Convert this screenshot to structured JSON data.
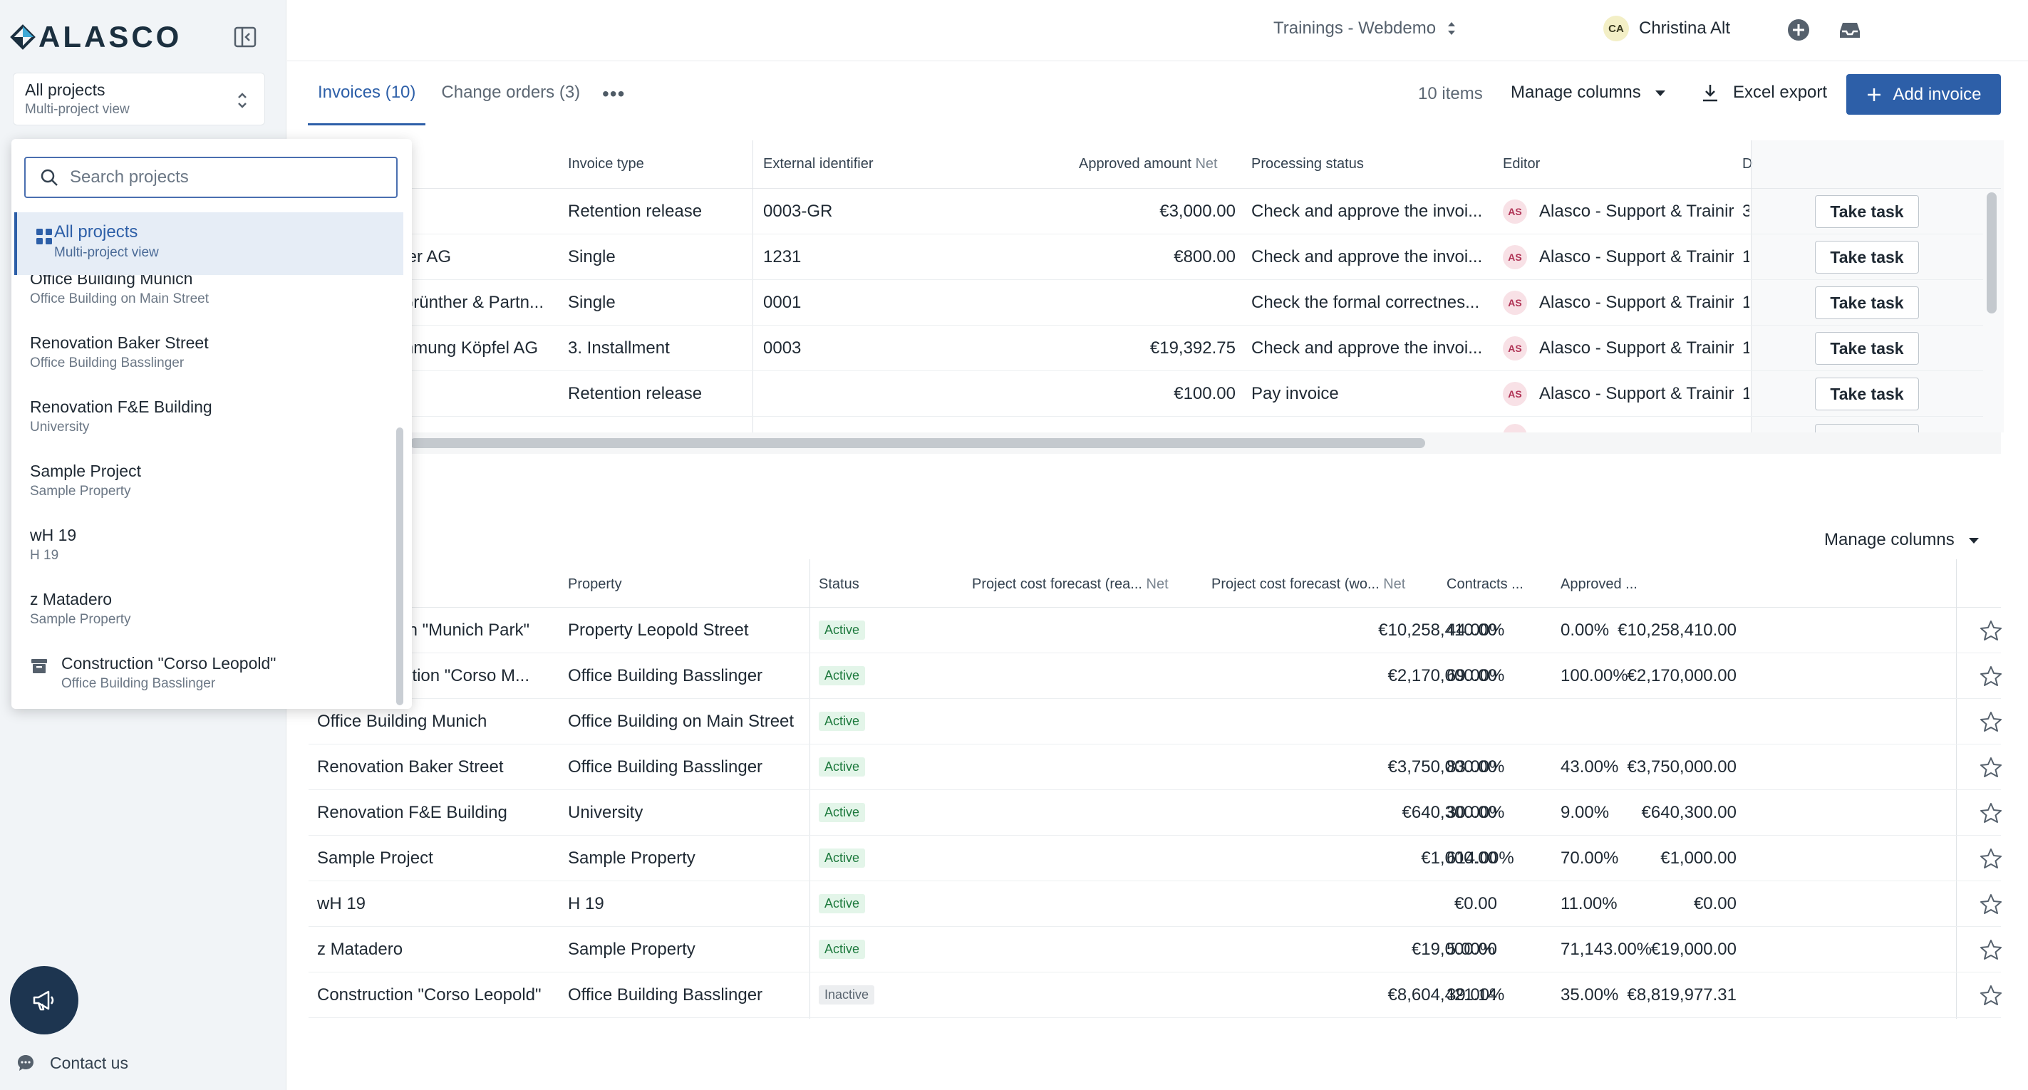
{
  "sidebar": {
    "logo_text": "ALASCO",
    "project_selector": {
      "title": "All projects",
      "subtitle": "Multi-project view"
    },
    "contact_label": "Contact us"
  },
  "dropdown": {
    "search_placeholder": "Search projects",
    "selected": {
      "title": "All projects",
      "subtitle": "Multi-project view"
    },
    "items": [
      {
        "title": "Office Building Munich",
        "subtitle": "Office Building on Main Street"
      },
      {
        "title": "Renovation Baker Street",
        "subtitle": "Office Building Basslinger"
      },
      {
        "title": "Renovation F&E Building",
        "subtitle": "University"
      },
      {
        "title": "Sample Project",
        "subtitle": "Sample Property"
      },
      {
        "title": "wH 19",
        "subtitle": "H 19"
      },
      {
        "title": "z Matadero",
        "subtitle": "Sample Property"
      },
      {
        "title": "Construction \"Corso Leopold\"",
        "subtitle": "Office Building Basslinger"
      }
    ]
  },
  "header": {
    "workspace": "Trainings - Webdemo",
    "user_initials": "CA",
    "user_name": "Christina Alt"
  },
  "tabs": [
    {
      "label": "Invoices (10)"
    },
    {
      "label": "Change orders (3)"
    }
  ],
  "more_label": "•••",
  "toolbar": {
    "items_count": "10 items",
    "manage_columns": "Manage columns",
    "excel_export": "Excel export",
    "add_invoice": "Add invoice"
  },
  "invoices": {
    "headers": {
      "invoice_type": "Invoice type",
      "external_identifier": "External identifier",
      "approved_amount": "Approved amount",
      "net": "Net",
      "processing_status": "Processing status",
      "editor": "Editor",
      "d": "D"
    },
    "rows": [
      {
        "contractor": "",
        "type": "Retention release",
        "ext_id": "0003-GR",
        "amount": "€3,000.00",
        "status": "Check and approve the invoi...",
        "editor_initials": "AS",
        "editor": "Alasco - Support & Trainir",
        "d": "3",
        "action": "Take task"
      },
      {
        "contractor": "uer AG",
        "type": "Single",
        "ext_id": "1231",
        "amount": "€800.00",
        "status": "Check and approve the invoi...",
        "editor_initials": "AS",
        "editor": "Alasco - Support & Trainir",
        "d": "1",
        "action": "Take task"
      },
      {
        "contractor": "Grünther & Partn...",
        "type": "Single",
        "ext_id": "0001",
        "amount": "",
        "status": "Check the formal correctnes...",
        "editor_initials": "AS",
        "editor": "Alasco - Support & Trainir",
        "d": "1",
        "action": "Take task"
      },
      {
        "contractor": "nmung Köpfel AG",
        "type": "3. Installment",
        "ext_id": "0003",
        "amount": "€19,392.75",
        "status": "Check and approve the invoi...",
        "editor_initials": "AS",
        "editor": "Alasco - Support & Trainir",
        "d": "1",
        "action": "Take task"
      },
      {
        "contractor": "",
        "type": "Retention release",
        "ext_id": "",
        "amount": "€100.00",
        "status": "Pay invoice",
        "editor_initials": "AS",
        "editor": "Alasco - Support & Trainir",
        "d": "1",
        "action": "Take task"
      }
    ]
  },
  "projects": {
    "manage_columns": "Manage columns",
    "headers": {
      "property": "Property",
      "status": "Status",
      "forecast_rea": "Project cost forecast (rea...",
      "forecast_wo": "Project cost forecast (wo...",
      "net": "Net",
      "contracts": "Contracts ...",
      "approved": "Approved ..."
    },
    "rows": [
      {
        "name": "n \"Munich Park\"",
        "property": "Property Leopold Street",
        "status": "Active",
        "forecast_rea": "€10,258,410.00",
        "forecast_wo": "€10,258,410.00",
        "contracts": "44.00%",
        "approved": "0.00%"
      },
      {
        "name": "uction \"Corso M...",
        "property": "Office Building Basslinger",
        "status": "Active",
        "forecast_rea": "€2,170,000.00",
        "forecast_wo": "€2,170,000.00",
        "contracts": "69.00%",
        "approved": "100.00%"
      },
      {
        "name": "Office Building Munich",
        "property": "Office Building on Main Street",
        "status": "Active",
        "forecast_rea": "",
        "forecast_wo": "",
        "contracts": "",
        "approved": ""
      },
      {
        "name": "Renovation Baker Street",
        "property": "Office Building Basslinger",
        "status": "Active",
        "forecast_rea": "€3,750,000.00",
        "forecast_wo": "€3,750,000.00",
        "contracts": "83.00%",
        "approved": "43.00%"
      },
      {
        "name": "Renovation F&E Building",
        "property": "University",
        "status": "Active",
        "forecast_rea": "€640,300.00",
        "forecast_wo": "€640,300.00",
        "contracts": "30.00%",
        "approved": "9.00%"
      },
      {
        "name": "Sample Project",
        "property": "Sample Property",
        "status": "Active",
        "forecast_rea": "€1,000.00",
        "forecast_wo": "€1,000.00",
        "contracts": "614.00%",
        "approved": "70.00%"
      },
      {
        "name": "wH 19",
        "property": "H 19",
        "status": "Active",
        "forecast_rea": "€0.00",
        "forecast_wo": "€0.00",
        "contracts": "",
        "approved": "11.00%"
      },
      {
        "name": "z Matadero",
        "property": "Sample Property",
        "status": "Active",
        "forecast_rea": "€19,000.00",
        "forecast_wo": "€19,000.00",
        "contracts": "5.00%",
        "approved": "71,143.00%"
      },
      {
        "name": "Construction \"Corso Leopold\"",
        "property": "Office Building Basslinger",
        "status": "Inactive",
        "forecast_rea": "€8,604,421.14",
        "forecast_wo": "€8,819,977.31",
        "contracts": "39.00%",
        "approved": "35.00%"
      }
    ]
  },
  "colors": {
    "primary": "#2d5fa8",
    "sidebar_bg": "#f1f4f7",
    "active_badge": "#e3f5e9",
    "editor_badge": "#f8e1e6"
  }
}
